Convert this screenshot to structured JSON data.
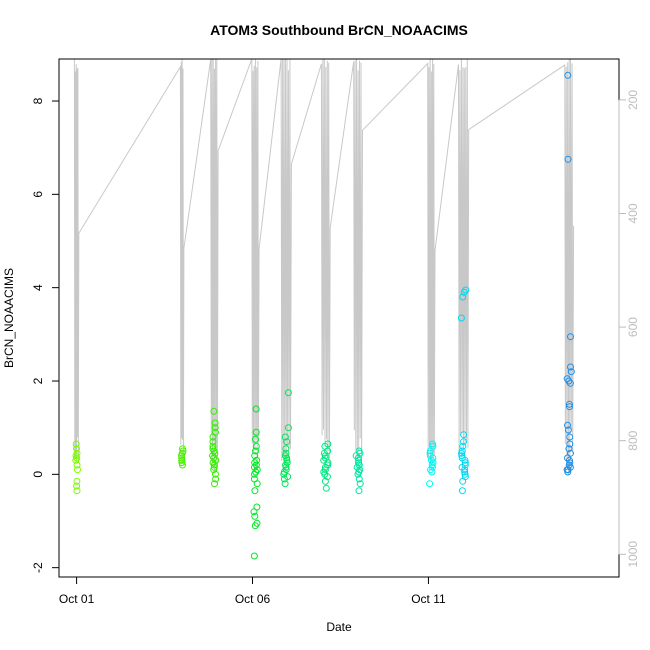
{
  "chart_data": {
    "type": "scatter",
    "title": "ATOM3 Southbound BrCN_NOAACIMS",
    "xlabel": "Date",
    "ylabel": "BrCN_NOAACIMS",
    "xlim": [
      "2017-09-30T12:00",
      "2017-10-16T10:00"
    ],
    "ylim": [
      -2.2,
      8.9
    ],
    "x_ticks": [
      "2017-10-01",
      "2017-10-06",
      "2017-10-11"
    ],
    "x_tick_labels": [
      "Oct 01",
      "Oct 06",
      "Oct 11"
    ],
    "y_ticks": [
      -2,
      0,
      2,
      4,
      6,
      8
    ],
    "y_tick_labels": [
      "-2",
      "0",
      "2",
      "4",
      "6",
      "8"
    ],
    "secondary_y": {
      "label": "",
      "ticks": [
        200,
        400,
        600,
        800,
        1000
      ],
      "tick_labels": [
        "200",
        "400",
        "600",
        "800",
        "1000"
      ],
      "reversed": true,
      "range_top": 128,
      "range_bottom": 1040,
      "color": "#bdbdbd",
      "series_description": "pressure"
    },
    "grid": false,
    "legend": "none",
    "clusters": [
      {
        "center": "2017-10-01T00:00",
        "spread_hours": 1.5,
        "color": "#7CFC00",
        "values": [
          -0.35,
          -0.25,
          -0.15,
          0.1,
          0.2,
          0.3,
          0.35,
          0.4,
          0.45,
          0.55,
          0.65
        ]
      },
      {
        "center": "2017-10-04T00:00",
        "spread_hours": 1.2,
        "color": "#4CEE00",
        "values": [
          0.2,
          0.25,
          0.3,
          0.3,
          0.35,
          0.4,
          0.45,
          0.5,
          0.55
        ]
      },
      {
        "center": "2017-10-04T22:00",
        "spread_hours": 2.5,
        "color": "#33EE00",
        "values": [
          -0.2,
          -0.1,
          0.0,
          0.1,
          0.15,
          0.2,
          0.25,
          0.3,
          0.35,
          0.4,
          0.45,
          0.5,
          0.55,
          0.6,
          0.7,
          0.8,
          0.9,
          1.0,
          1.1,
          1.35
        ]
      },
      {
        "center": "2017-10-06T02:00",
        "spread_hours": 2.5,
        "color": "#00E626",
        "values": [
          -1.75,
          -1.1,
          -1.05,
          -0.9,
          -0.8,
          -0.7,
          -0.35,
          -0.2,
          -0.1,
          0.0,
          0.05,
          0.1,
          0.15,
          0.2,
          0.25,
          0.3,
          0.4,
          0.5,
          0.6,
          0.75,
          0.9,
          1.4
        ]
      },
      {
        "center": "2017-10-06T23:00",
        "spread_hours": 3.5,
        "color": "#00E65A",
        "values": [
          -0.2,
          -0.1,
          -0.05,
          0.0,
          0.05,
          0.1,
          0.15,
          0.2,
          0.25,
          0.3,
          0.35,
          0.4,
          0.45,
          0.55,
          0.7,
          0.8,
          1.0,
          1.75
        ]
      },
      {
        "center": "2017-10-08T02:00",
        "spread_hours": 3.0,
        "color": "#00E680",
        "values": [
          -0.3,
          -0.15,
          -0.05,
          0.0,
          0.05,
          0.1,
          0.15,
          0.2,
          0.25,
          0.3,
          0.35,
          0.4,
          0.45,
          0.5,
          0.6,
          0.65
        ]
      },
      {
        "center": "2017-10-09T00:00",
        "spread_hours": 3.0,
        "color": "#00E6A0",
        "values": [
          -0.35,
          -0.2,
          -0.1,
          0.0,
          0.05,
          0.1,
          0.15,
          0.2,
          0.25,
          0.3,
          0.35,
          0.4,
          0.45,
          0.5
        ]
      },
      {
        "center": "2017-10-11T02:00",
        "spread_hours": 2.5,
        "color": "#00F5F5",
        "values": [
          -0.2,
          0.05,
          0.1,
          0.15,
          0.2,
          0.25,
          0.3,
          0.35,
          0.4,
          0.45,
          0.5,
          0.6,
          0.65
        ]
      },
      {
        "center": "2017-10-12T00:00",
        "spread_hours": 3.5,
        "color": "#00D8F0",
        "values": [
          -0.35,
          -0.15,
          -0.05,
          0.0,
          0.05,
          0.1,
          0.15,
          0.2,
          0.25,
          0.3,
          0.35,
          0.4,
          0.45,
          0.5,
          0.6,
          0.7,
          0.85,
          3.35,
          3.8,
          3.9,
          3.95
        ]
      },
      {
        "center": "2017-10-15T00:00",
        "spread_hours": 3.0,
        "color": "#1E90E8",
        "values": [
          0.05,
          0.1,
          0.1,
          0.15,
          0.2,
          0.25,
          0.3,
          0.35,
          0.45,
          0.55,
          0.65,
          0.8,
          0.95,
          1.05,
          1.45,
          1.5,
          1.95,
          2.0,
          2.05,
          2.2,
          2.3,
          2.95,
          6.75,
          8.55
        ]
      }
    ],
    "pressure_trace_color": "#c8c8c8"
  }
}
